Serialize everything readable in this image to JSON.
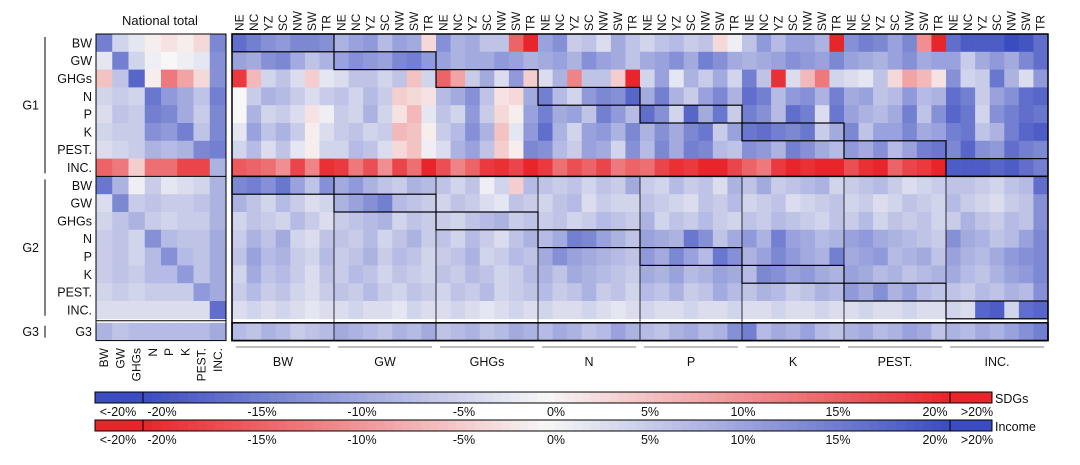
{
  "chart_data": {
    "type": "heatmap",
    "national_title": "National total",
    "rows": [
      {
        "group": "G1",
        "label": "BW"
      },
      {
        "group": "G1",
        "label": "GW"
      },
      {
        "group": "G1",
        "label": "GHGs"
      },
      {
        "group": "G1",
        "label": "N"
      },
      {
        "group": "G1",
        "label": "P"
      },
      {
        "group": "G1",
        "label": "K"
      },
      {
        "group": "G1",
        "label": "PEST."
      },
      {
        "group": "G1",
        "label": "INC."
      },
      {
        "group": "G2",
        "label": "BW"
      },
      {
        "group": "G2",
        "label": "GW"
      },
      {
        "group": "G2",
        "label": "GHGs"
      },
      {
        "group": "G2",
        "label": "N"
      },
      {
        "group": "G2",
        "label": "P"
      },
      {
        "group": "G2",
        "label": "K"
      },
      {
        "group": "G2",
        "label": "PEST."
      },
      {
        "group": "G2",
        "label": "INC."
      },
      {
        "group": "G3",
        "label": "G3"
      }
    ],
    "groups": [
      "G1",
      "G2",
      "G3"
    ],
    "national_columns": [
      "BW",
      "GW",
      "GHGs",
      "N",
      "P",
      "K",
      "PEST.",
      "INC."
    ],
    "regions": [
      "NE",
      "NC",
      "YZ",
      "SC",
      "NW",
      "SW",
      "TR"
    ],
    "indicator_blocks": [
      "BW",
      "GW",
      "GHGs",
      "N",
      "P",
      "K",
      "PEST.",
      "INC."
    ],
    "scale_ticks": [
      "<-20%",
      "-20%",
      "-15%",
      "-10%",
      "-5%",
      "0%",
      "5%",
      "10%",
      "15%",
      "20%",
      ">20%"
    ],
    "range": [
      -20,
      20
    ],
    "sdg_scale_label": "SDGs",
    "income_scale_label": "Income",
    "colors": {
      "negative_sdg": "#3b4cc0",
      "neutral": "#f7f7f7",
      "positive_sdg": "#e8252b"
    },
    "national": [
      [
        -14,
        -4,
        -2,
        1,
        2,
        1,
        3,
        -13
      ],
      [
        -2,
        -14,
        -4,
        -1,
        0,
        -1,
        -2,
        -12
      ],
      [
        5,
        -6,
        -17,
        1,
        12,
        8,
        3,
        -12
      ],
      [
        -4,
        -5,
        -4,
        -15,
        -11,
        -9,
        -6,
        -14
      ],
      [
        -3,
        -6,
        -5,
        -14,
        -13,
        -9,
        -5,
        -13
      ],
      [
        -4,
        -5,
        -5,
        -12,
        -11,
        -14,
        -6,
        -13
      ],
      [
        -3,
        -4,
        -5,
        -8,
        -7,
        -8,
        -13,
        -14
      ],
      [
        14,
        12,
        4,
        13,
        13,
        17,
        17,
        -8
      ],
      [
        -15,
        -8,
        -1,
        -5,
        -2,
        -3,
        -4,
        -8
      ],
      [
        -3,
        -13,
        -5,
        -6,
        -5,
        -5,
        -6,
        -8
      ],
      [
        -4,
        -6,
        -8,
        -5,
        -4,
        -5,
        -5,
        -8
      ],
      [
        -5,
        -6,
        -4,
        -12,
        -7,
        -6,
        -6,
        -9
      ],
      [
        -5,
        -6,
        -4,
        -7,
        -12,
        -7,
        -6,
        -9
      ],
      [
        -5,
        -6,
        -5,
        -7,
        -7,
        -11,
        -6,
        -9
      ],
      [
        -4,
        -5,
        -4,
        -5,
        -5,
        -5,
        -11,
        -9
      ],
      [
        -3,
        -3,
        -3,
        -3,
        -3,
        -3,
        -3,
        -16
      ],
      [
        -8,
        -6,
        -7,
        -7,
        -7,
        -7,
        -7,
        -9
      ]
    ],
    "regional": [
      [
        -16,
        -14,
        -12,
        -11,
        -13,
        -13,
        -12,
        -8,
        -10,
        -11,
        -7,
        -10,
        -9,
        3,
        -12,
        -8,
        -9,
        -6,
        -6,
        14,
        21,
        -10,
        -12,
        -5,
        -6,
        -3,
        -9,
        -6,
        -4,
        -6,
        -7,
        -5,
        -6,
        3,
        -1,
        -6,
        -11,
        -7,
        -10,
        -10,
        -8,
        24,
        -12,
        -14,
        -13,
        -10,
        -13,
        10,
        21,
        -16,
        -18,
        -18,
        -18,
        -20,
        -19,
        -16
      ],
      [
        -10,
        -9,
        -12,
        -13,
        -9,
        -6,
        -8,
        -10,
        -12,
        -11,
        -10,
        -13,
        -14,
        -11,
        -10,
        -8,
        -9,
        -9,
        -11,
        -10,
        -8,
        -9,
        -10,
        -8,
        -12,
        -10,
        -9,
        -6,
        -9,
        -10,
        -12,
        -9,
        -14,
        -12,
        -9,
        -8,
        -9,
        -10,
        -12,
        -11,
        -10,
        -13,
        -10,
        -9,
        -8,
        -10,
        -12,
        -9,
        -10,
        -10,
        -5,
        -9,
        -11,
        -9,
        -13,
        -16
      ],
      [
        18,
        6,
        -4,
        -6,
        -3,
        4,
        -2,
        -3,
        -6,
        -6,
        -4,
        -6,
        5,
        -4,
        14,
        8,
        -5,
        -9,
        -3,
        -11,
        4,
        -3,
        -8,
        11,
        -6,
        -6,
        4,
        20,
        -4,
        -10,
        -2,
        -8,
        -5,
        -9,
        -4,
        -14,
        -6,
        19,
        -3,
        6,
        12,
        -4,
        -3,
        -2,
        -6,
        3,
        8,
        6,
        2,
        -12,
        -4,
        -5,
        -15,
        -8,
        -3,
        -11
      ],
      [
        0,
        -5,
        -8,
        -7,
        -5,
        -3,
        -5,
        -6,
        -4,
        -7,
        -5,
        4,
        3,
        2,
        -7,
        -9,
        -12,
        -6,
        2,
        3,
        -9,
        -14,
        -7,
        -4,
        -11,
        -13,
        -12,
        -17,
        -9,
        -14,
        -8,
        -5,
        -10,
        -13,
        -8,
        -16,
        -14,
        -7,
        -11,
        -12,
        -8,
        -14,
        -9,
        -10,
        -6,
        -7,
        -11,
        -7,
        -8,
        -16,
        -14,
        -5,
        -10,
        -12,
        -16,
        -17
      ],
      [
        0,
        -8,
        -4,
        -5,
        -3,
        2,
        -1,
        -5,
        -4,
        -8,
        -4,
        2,
        6,
        -2,
        -6,
        -4,
        -11,
        -5,
        3,
        1,
        -10,
        -14,
        -9,
        -10,
        -6,
        -14,
        -11,
        -7,
        -16,
        -12,
        -4,
        -17,
        -9,
        -15,
        -5,
        -14,
        -12,
        -7,
        -16,
        -14,
        -3,
        -15,
        -10,
        -8,
        -7,
        -9,
        -14,
        -6,
        -12,
        -17,
        -15,
        -4,
        -12,
        -14,
        -16,
        -15
      ],
      [
        -2,
        -10,
        -6,
        -8,
        -5,
        1,
        -3,
        -5,
        -6,
        -4,
        -5,
        6,
        5,
        1,
        -5,
        -7,
        -12,
        -8,
        5,
        -2,
        -11,
        -16,
        -8,
        -4,
        -10,
        -11,
        -8,
        -13,
        -8,
        -12,
        -9,
        -13,
        -15,
        -5,
        -10,
        -15,
        -16,
        -14,
        -13,
        -15,
        -5,
        -9,
        -13,
        -6,
        -10,
        -10,
        -13,
        -9,
        -10,
        -14,
        -15,
        -6,
        -8,
        -14,
        -17,
        -18
      ],
      [
        -4,
        -7,
        -3,
        -6,
        -2,
        1,
        -4,
        -4,
        -7,
        -6,
        -3,
        3,
        5,
        -1,
        -3,
        -8,
        -10,
        -6,
        4,
        1,
        -13,
        -12,
        -7,
        -5,
        -10,
        -9,
        -4,
        -12,
        -7,
        -13,
        -9,
        -14,
        -13,
        -7,
        -6,
        -12,
        -11,
        -8,
        -14,
        -12,
        -9,
        -7,
        -11,
        -9,
        -12,
        -7,
        -10,
        -14,
        -15,
        -13,
        -17,
        -12,
        -11,
        -16,
        -14,
        -13
      ],
      [
        15,
        14,
        13,
        10,
        17,
        11,
        19,
        18,
        12,
        16,
        10,
        17,
        13,
        20,
        16,
        11,
        14,
        18,
        19,
        17,
        20,
        18,
        13,
        16,
        14,
        17,
        12,
        14,
        13,
        17,
        19,
        18,
        20,
        22,
        17,
        14,
        12,
        18,
        21,
        19,
        24,
        22,
        16,
        19,
        20,
        14,
        17,
        18,
        22,
        -18,
        -18,
        -18,
        -17,
        -18,
        -16,
        -14
      ],
      [
        -13,
        -14,
        -12,
        -15,
        -10,
        -6,
        -12,
        -9,
        -11,
        -8,
        -6,
        -5,
        -8,
        -7,
        -6,
        -4,
        -6,
        -1,
        -4,
        4,
        -7,
        -6,
        -5,
        -6,
        -4,
        -6,
        -5,
        -9,
        -5,
        -4,
        -7,
        -5,
        -6,
        -3,
        -8,
        -6,
        -9,
        -5,
        -6,
        -7,
        -8,
        -4,
        -5,
        -6,
        -7,
        -5,
        -3,
        -4,
        -5,
        -6,
        -6,
        -5,
        -4,
        -6,
        -7,
        -16
      ],
      [
        -8,
        -6,
        -4,
        -7,
        -5,
        -3,
        -4,
        -8,
        -10,
        -12,
        -14,
        -7,
        -6,
        -5,
        -4,
        -6,
        -5,
        -3,
        -2,
        -6,
        -5,
        -4,
        -6,
        -7,
        -3,
        -5,
        -4,
        -4,
        -6,
        -5,
        -4,
        -3,
        -6,
        -5,
        -7,
        -4,
        -5,
        -6,
        -3,
        -4,
        -5,
        -6,
        -4,
        -5,
        -3,
        -4,
        -6,
        -5,
        -4,
        -7,
        -5,
        -4,
        -3,
        -5,
        -6,
        -12
      ],
      [
        -4,
        -6,
        -5,
        -4,
        -7,
        -5,
        -3,
        -5,
        -6,
        -7,
        -8,
        -4,
        -6,
        -5,
        -5,
        -4,
        -6,
        -7,
        -8,
        -5,
        -6,
        -5,
        -6,
        -4,
        -5,
        -7,
        -6,
        -5,
        -8,
        -4,
        -6,
        -5,
        -7,
        -5,
        -4,
        -6,
        -5,
        -7,
        -6,
        -5,
        -4,
        -6,
        -5,
        -7,
        -4,
        -6,
        -5,
        -6,
        -4,
        -5,
        -8,
        -6,
        -5,
        -7,
        -6,
        -12
      ],
      [
        -5,
        -8,
        -6,
        -9,
        -4,
        -3,
        -6,
        -6,
        -5,
        -7,
        -4,
        -6,
        -8,
        -5,
        -6,
        -4,
        -7,
        -5,
        -3,
        -6,
        -8,
        -7,
        -9,
        -14,
        -13,
        -10,
        -8,
        -6,
        -10,
        -9,
        -8,
        -15,
        -12,
        -6,
        -9,
        -11,
        -8,
        -14,
        -10,
        -9,
        -7,
        -8,
        -10,
        -11,
        -9,
        -8,
        -7,
        -6,
        -5,
        -12,
        -9,
        -8,
        -6,
        -7,
        -10,
        -13
      ],
      [
        -6,
        -10,
        -7,
        -8,
        -5,
        -4,
        -7,
        -5,
        -6,
        -8,
        -5,
        -7,
        -6,
        -4,
        -5,
        -6,
        -8,
        -4,
        -5,
        -7,
        -6,
        -9,
        -12,
        -10,
        -9,
        -8,
        -7,
        -6,
        -11,
        -9,
        -13,
        -10,
        -7,
        -15,
        -12,
        -8,
        -10,
        -13,
        -11,
        -9,
        -8,
        -14,
        -9,
        -10,
        -11,
        -7,
        -8,
        -9,
        -6,
        -10,
        -8,
        -7,
        -9,
        -11,
        -12,
        -13
      ],
      [
        -4,
        -9,
        -6,
        -7,
        -5,
        -3,
        -6,
        -5,
        -7,
        -6,
        -4,
        -6,
        -5,
        -4,
        -6,
        -5,
        -7,
        -6,
        -4,
        -5,
        -7,
        -8,
        -6,
        -9,
        -8,
        -7,
        -6,
        -5,
        -9,
        -8,
        -10,
        -7,
        -8,
        -10,
        -9,
        -7,
        -13,
        -12,
        -10,
        -11,
        -9,
        -8,
        -10,
        -9,
        -7,
        -8,
        -6,
        -7,
        -8,
        -9,
        -7,
        -6,
        -8,
        -10,
        -11,
        -13
      ],
      [
        -5,
        -7,
        -5,
        -6,
        -4,
        -3,
        -5,
        -6,
        -5,
        -7,
        -5,
        -4,
        -6,
        -5,
        -4,
        -6,
        -5,
        -7,
        -4,
        -5,
        -6,
        -7,
        -5,
        -6,
        -8,
        -5,
        -6,
        -4,
        -7,
        -6,
        -8,
        -5,
        -6,
        -9,
        -7,
        -6,
        -8,
        -7,
        -5,
        -6,
        -8,
        -7,
        -11,
        -9,
        -12,
        -8,
        -10,
        -7,
        -6,
        -6,
        -5,
        -7,
        -6,
        -8,
        -7,
        -12
      ],
      [
        -3,
        -4,
        -3,
        -4,
        -3,
        -2,
        -3,
        -3,
        -4,
        -3,
        -3,
        -2,
        -4,
        -3,
        -3,
        -4,
        -3,
        -2,
        -3,
        -4,
        -3,
        -4,
        -3,
        -3,
        -4,
        -3,
        -2,
        -3,
        -4,
        -3,
        -3,
        -4,
        -3,
        -3,
        -4,
        -3,
        -3,
        -4,
        -3,
        -3,
        -4,
        -3,
        -3,
        -4,
        -3,
        -3,
        -4,
        -3,
        -3,
        -4,
        -3,
        -17,
        -18,
        -4,
        -16,
        -17
      ],
      [
        -7,
        -6,
        -8,
        -7,
        -5,
        -6,
        -7,
        -9,
        -8,
        -7,
        -6,
        -8,
        -7,
        -9,
        -6,
        -7,
        -8,
        -6,
        -7,
        -9,
        -8,
        -7,
        -9,
        -8,
        -6,
        -7,
        -10,
        -8,
        -7,
        -6,
        -8,
        -9,
        -7,
        -8,
        -12,
        -14,
        -7,
        -9,
        -8,
        -10,
        -7,
        -6,
        -8,
        -9,
        -7,
        -8,
        -10,
        -9,
        -6,
        -8,
        -7,
        -9,
        -8,
        -10,
        -12,
        -14
      ]
    ]
  }
}
